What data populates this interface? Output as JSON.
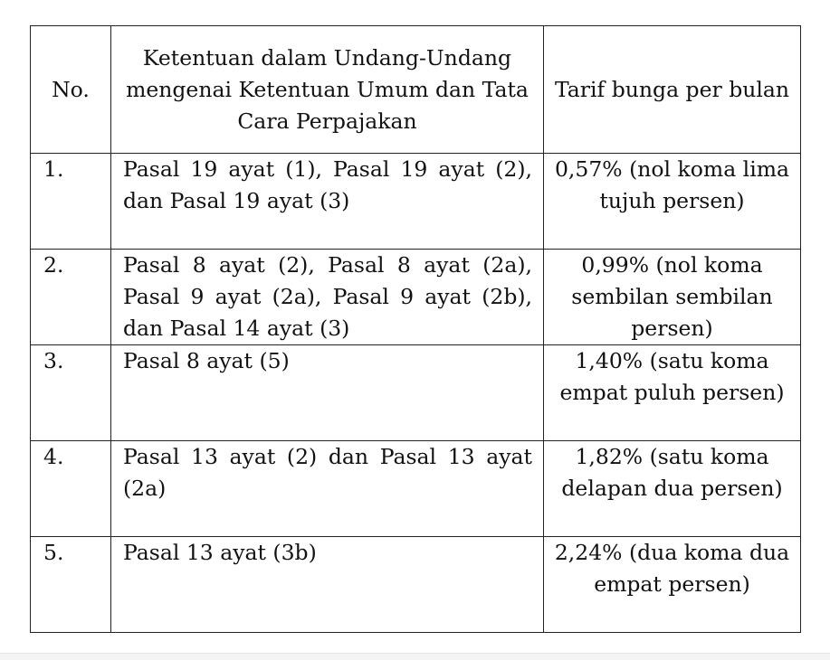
{
  "table": {
    "headers": [
      "No.",
      "Ketentuan dalam Undang-Undang mengenai Ketentuan Umum dan Tata Cara Perpajakan",
      "Tarif bunga per bulan"
    ],
    "rows": [
      {
        "no": "1.",
        "pasal": "Pasal 19 ayat (1), Pasal 19 ayat (2), dan Pasal 19 ayat (3)",
        "tarif": "0,57% (nol koma lima tujuh persen)"
      },
      {
        "no": "2.",
        "pasal": "Pasal 8 ayat (2), Pasal 8 ayat (2a), Pasal 9 ayat (2a), Pasal 9 ayat (2b), dan Pasal 14 ayat (3)",
        "tarif": "0,99% (nol koma sembilan sembilan persen)"
      },
      {
        "no": "3.",
        "pasal": "Pasal 8 ayat (5)",
        "tarif": "1,40% (satu koma empat puluh persen)"
      },
      {
        "no": "4.",
        "pasal": "Pasal 13 ayat (2) dan Pasal 13 ayat (2a)",
        "tarif": "1,82% (satu koma delapan dua persen)"
      },
      {
        "no": "5.",
        "pasal": "Pasal 13 ayat (3b)",
        "tarif": "2,24% (dua koma dua empat persen)"
      }
    ]
  }
}
